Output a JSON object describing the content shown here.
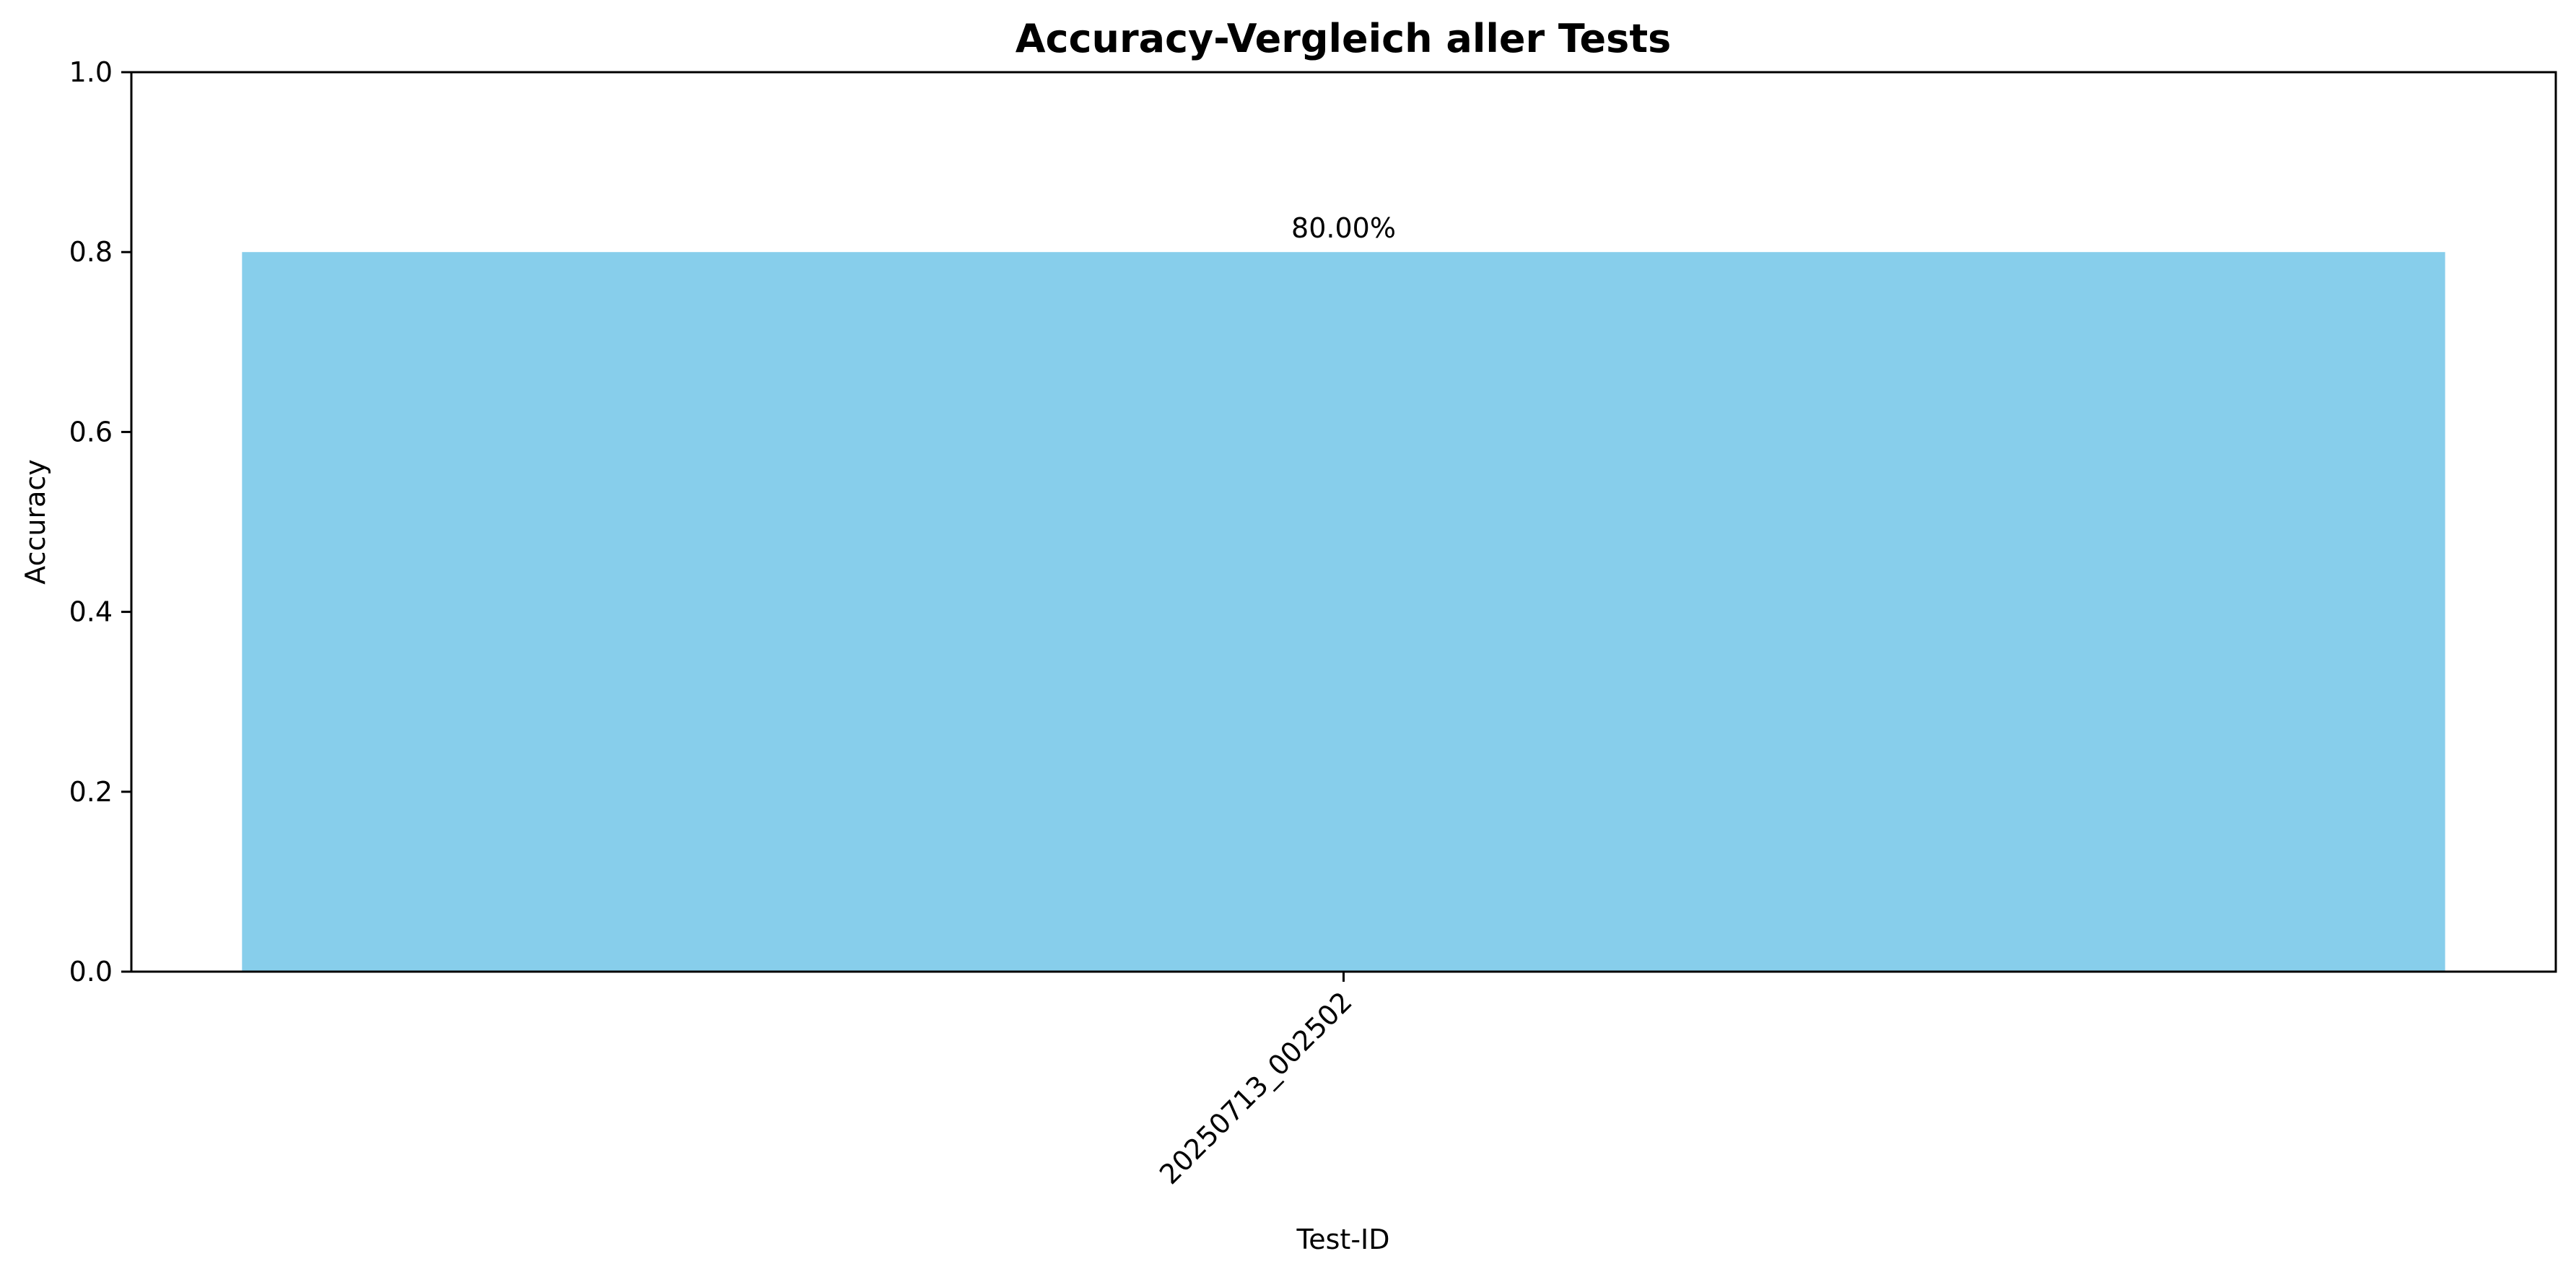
{
  "chart_data": {
    "type": "bar",
    "title": "Accuracy-Vergleich aller Tests",
    "xlabel": "Test-ID",
    "ylabel": "Accuracy",
    "categories": [
      "20250713_002502"
    ],
    "values": [
      0.8
    ],
    "data_labels": [
      "80.00%"
    ],
    "ylim": [
      0,
      1.0
    ],
    "yticks": [
      0.0,
      0.2,
      0.4,
      0.6,
      0.8,
      1.0
    ],
    "ytick_labels": [
      "0.0",
      "0.2",
      "0.4",
      "0.6",
      "0.8",
      "1.0"
    ],
    "grid": false,
    "legend": "none",
    "bar_color": "#87CEEB"
  }
}
